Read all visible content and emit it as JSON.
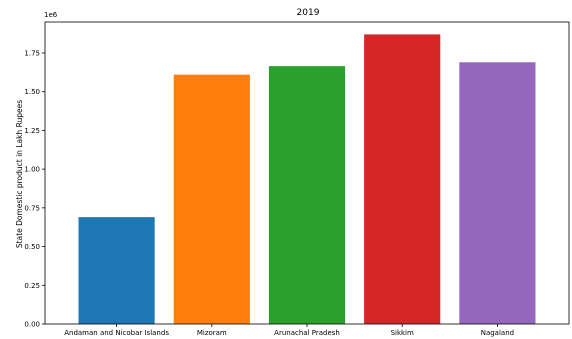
{
  "chart_data": {
    "type": "bar",
    "title": "2019",
    "xlabel": "",
    "ylabel": "State Domestic product in Lakh Rupees",
    "y_scale_note": "1e6",
    "categories": [
      "Andaman and Nicobar Islands",
      "Mizoram",
      "Arunachal Pradesh",
      "Sikkim",
      "Nagaland"
    ],
    "values": [
      690000,
      1610000,
      1665000,
      1870000,
      1690000
    ],
    "colors": [
      "#1f77b4",
      "#ff7f0e",
      "#2ca02c",
      "#d62728",
      "#9467bd"
    ],
    "ylim": [
      0,
      1950000
    ],
    "yticks": [
      0,
      250000,
      500000,
      750000,
      1000000,
      1250000,
      1500000,
      1750000
    ],
    "ytick_labels": [
      "0.00",
      "0.25",
      "0.50",
      "0.75",
      "1.00",
      "1.25",
      "1.50",
      "1.75"
    ],
    "grid": false,
    "legend": "none"
  }
}
